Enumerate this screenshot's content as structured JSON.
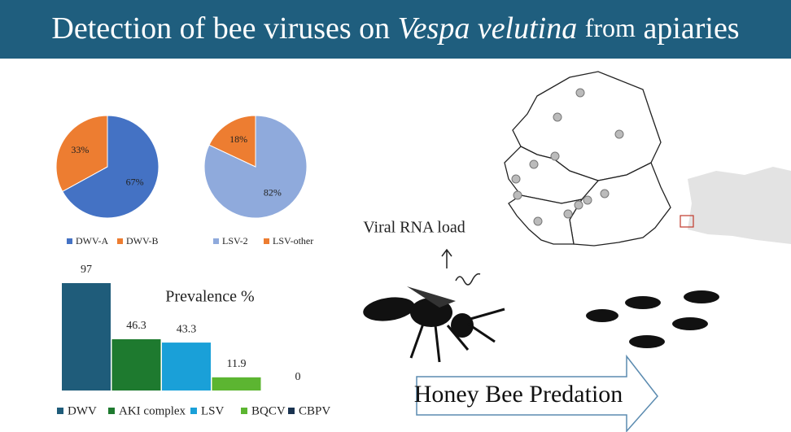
{
  "title": {
    "part1": "Detection of bee viruses on",
    "part2": "Vespa velutina",
    "part3": "from",
    "part4": "apiaries"
  },
  "chart_data": [
    {
      "type": "pie",
      "categories": [
        "DWV-A",
        "DWV-B"
      ],
      "values": [
        67,
        33
      ],
      "value_labels": [
        "67%",
        "33%"
      ],
      "colors": [
        "#4472c4",
        "#ed7d31"
      ]
    },
    {
      "type": "pie",
      "categories": [
        "LSV-2",
        "LSV-other"
      ],
      "values": [
        82,
        18
      ],
      "value_labels": [
        "82%",
        "18%"
      ],
      "colors": [
        "#8faadc",
        "#ed7d31"
      ]
    },
    {
      "type": "bar",
      "title": "Prevalence %",
      "categories": [
        "DWV",
        "AKI complex",
        "LSV",
        "BQCV",
        "CBPV"
      ],
      "values": [
        97,
        46.3,
        43.3,
        11.9,
        0
      ],
      "colors": [
        "#1f5c7a",
        "#1e7a2f",
        "#1aa0d8",
        "#5cb531",
        "#1a3350"
      ]
    }
  ],
  "labels": {
    "rna": "Viral RNA load",
    "predation": "Honey Bee Predation"
  }
}
